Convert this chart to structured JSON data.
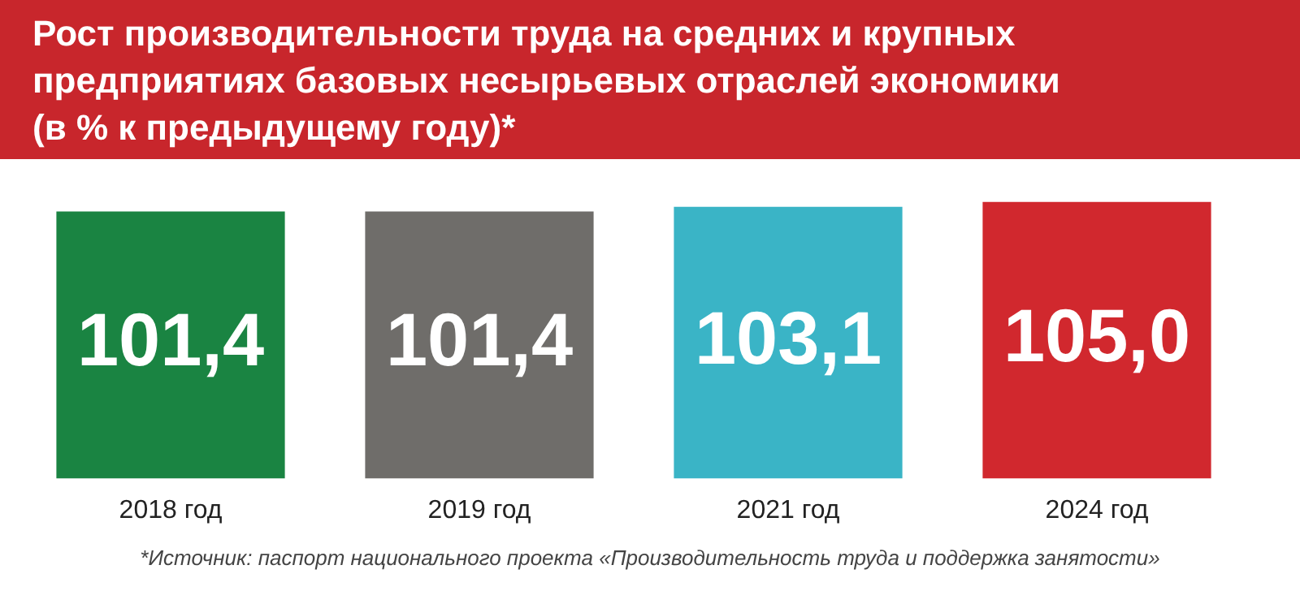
{
  "chart_data": {
    "type": "bar",
    "title": "Рост производительности труда на средних и крупных предприятиях базовых несырьевых отраслей экономики (в % к предыдущему году)*",
    "categories": [
      "2018 год",
      "2019 год",
      "2021 год",
      "2024 год"
    ],
    "values": [
      101.4,
      101.4,
      103.1,
      105.0
    ],
    "colors": [
      "#1a8442",
      "#6f6d6a",
      "#3ab4c6",
      "#d1282e"
    ],
    "value_labels": [
      "101,4",
      "101,4",
      "103,1",
      "105,0"
    ],
    "tick_labels": "x",
    "grid": false,
    "legend": false,
    "annotations": [
      "*Источник: паспорт национального проекта «Производительность труда и поддержка занятости»"
    ]
  }
}
